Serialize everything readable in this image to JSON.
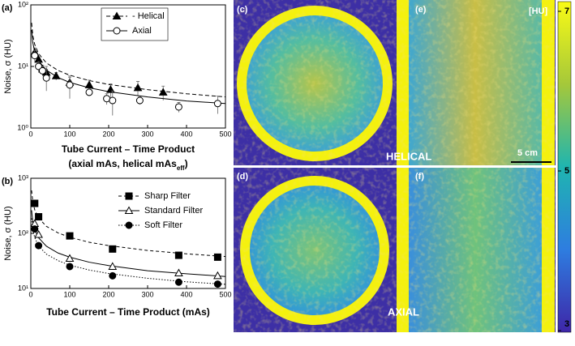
{
  "chart_data": [
    {
      "type": "line",
      "panel": "(a)",
      "ylabel": "Noise, σ (HU)",
      "xlabel": "Tube Current – Time Product",
      "xlabel2": [
        "(axial mAs, helical mAs",
        "eff",
        ")"
      ],
      "xlim": [
        0,
        500
      ],
      "xticks": [
        0,
        100,
        200,
        300,
        400,
        500
      ],
      "ylim": [
        1,
        100
      ],
      "log_y": true,
      "yticks": [
        {
          "value": 1,
          "label": "10⁰"
        },
        {
          "value": 10,
          "label": "10¹"
        },
        {
          "value": 100,
          "label": "10²"
        }
      ],
      "legend_box": true,
      "series": [
        {
          "name": "- Helical",
          "color": "#000000",
          "marker": "triangle",
          "filled": true,
          "dash": "5,3",
          "x": [
            10,
            20,
            30,
            40,
            65,
            100,
            150,
            205,
            275,
            340
          ],
          "values": [
            17,
            13,
            9,
            8,
            7,
            5.5,
            5,
            4.2,
            4.5,
            3.8
          ],
          "errors": [
            3,
            2.5,
            1.5,
            2,
            1,
            1.2,
            1,
            1,
            1.2,
            1
          ],
          "fit_x": [
            2,
            5,
            10,
            20,
            40,
            70,
            100,
            150,
            200,
            300,
            400,
            500
          ],
          "fit_values": [
            51,
            32,
            22.8,
            16.1,
            11.4,
            8.6,
            7.2,
            5.9,
            5.1,
            4.2,
            3.6,
            3.2
          ]
        },
        {
          "name": "Axial",
          "color": "#000000",
          "marker": "circle",
          "filled": false,
          "dash": "",
          "x": [
            10,
            20,
            30,
            40,
            100,
            150,
            195,
            210,
            280,
            380,
            480
          ],
          "values": [
            15,
            10,
            8.5,
            6.5,
            5,
            3.8,
            3,
            2.8,
            2.8,
            2.2,
            2.5
          ],
          "errors": [
            3,
            2,
            1.5,
            2.5,
            2,
            0.5,
            0.6,
            1.2,
            0.4,
            0.4,
            0.8
          ],
          "fit_x": [
            2,
            5,
            10,
            20,
            40,
            70,
            100,
            150,
            200,
            300,
            400,
            500
          ],
          "fit_values": [
            39,
            24.6,
            17.4,
            12.3,
            8.7,
            6.6,
            5.5,
            4.5,
            3.9,
            3.2,
            2.75,
            2.5
          ]
        }
      ]
    },
    {
      "type": "line",
      "panel": "(b)",
      "ylabel": "Noise, σ (HU)",
      "xlabel": "Tube Current – Time Product (mAs)",
      "xlim": [
        0,
        500
      ],
      "xticks": [
        0,
        100,
        200,
        300,
        400,
        500
      ],
      "ylim": [
        10,
        1000
      ],
      "log_y": true,
      "yticks": [
        {
          "value": 10,
          "label": "10¹"
        },
        {
          "value": 100,
          "label": "10²"
        },
        {
          "value": 1000,
          "label": "10³"
        }
      ],
      "legend_box": false,
      "series": [
        {
          "name": "Sharp Filter",
          "color": "#000000",
          "marker": "square",
          "filled": true,
          "dash": "4,3",
          "x": [
            10,
            20,
            100,
            210,
            380,
            480
          ],
          "values": [
            350,
            200,
            90,
            52,
            40,
            37
          ],
          "fit_x": [
            2,
            5,
            10,
            20,
            40,
            70,
            100,
            150,
            200,
            300,
            400,
            500
          ],
          "fit_values": [
            600,
            380,
            269,
            190,
            134,
            102,
            85,
            69,
            60,
            49,
            42.5,
            38
          ]
        },
        {
          "name": "Standard Filter",
          "color": "#000000",
          "marker": "triangle",
          "filled": false,
          "dash": "",
          "x": [
            10,
            20,
            100,
            210,
            380,
            480
          ],
          "values": [
            150,
            95,
            35,
            25,
            19,
            17
          ],
          "fit_x": [
            2,
            5,
            10,
            20,
            40,
            70,
            100,
            150,
            200,
            300,
            400,
            500
          ],
          "fit_values": [
            262,
            165,
            117,
            83,
            58.5,
            44,
            37,
            30,
            26,
            21,
            18.5,
            16.5
          ]
        },
        {
          "name": "Soft Filter",
          "color": "#000000",
          "marker": "circle",
          "filled": true,
          "dash": "1.5,2",
          "x": [
            10,
            20,
            100,
            210,
            380,
            480
          ],
          "values": [
            120,
            60,
            25,
            17,
            13,
            12
          ],
          "fit_x": [
            2,
            5,
            10,
            20,
            40,
            70,
            100,
            150,
            200,
            300,
            400,
            500
          ],
          "fit_values": [
            187,
            118,
            84,
            59,
            42,
            32,
            26.5,
            21.6,
            18.7,
            15.3,
            13.2,
            11.9
          ]
        }
      ]
    }
  ],
  "images": {
    "panels": [
      "(c)",
      "(e)",
      "(d)",
      "(f)"
    ],
    "helical": "HELICAL",
    "axial": "AXIAL",
    "scale_bar": "5 cm",
    "colorbar_unit": "[HU]",
    "colorbar_lim": [
      3,
      7
    ],
    "colorbar_ticks": [
      3,
      5,
      7
    ]
  }
}
